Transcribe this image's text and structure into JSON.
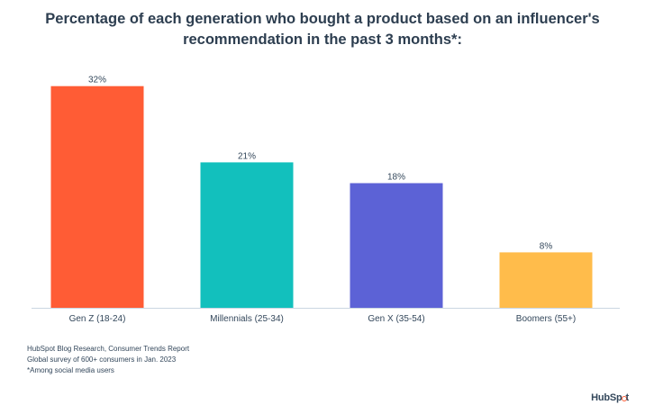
{
  "chart_data": {
    "type": "bar",
    "title_lines": [
      "Percentage of each generation who bought a product based on an influencer's",
      "recommendation in the past 3 months*:"
    ],
    "categories": [
      "Gen Z (18-24)",
      "Millennials (25-34)",
      "Gen X (35-54)",
      "Boomers (55+)"
    ],
    "values": [
      32,
      21,
      18,
      8
    ],
    "data_labels": [
      "32%",
      "21%",
      "18%",
      "8%"
    ],
    "bar_colors": [
      "#ff5c35",
      "#12c0bd",
      "#5c62d6",
      "#ffbc4b"
    ],
    "xlabel": "",
    "ylabel": "",
    "ylim": [
      0,
      33
    ],
    "grid": false,
    "legend": "none"
  },
  "footnotes": [
    "HubSpot Blog Research, Consumer Trends Report",
    "Global survey of 600+ consumers in Jan. 2023",
    "*Among social media users"
  ],
  "brand": {
    "text_before": "HubSp",
    "text_after": "t",
    "icon": "sprocket-icon",
    "accent_color": "#ff5c35"
  }
}
